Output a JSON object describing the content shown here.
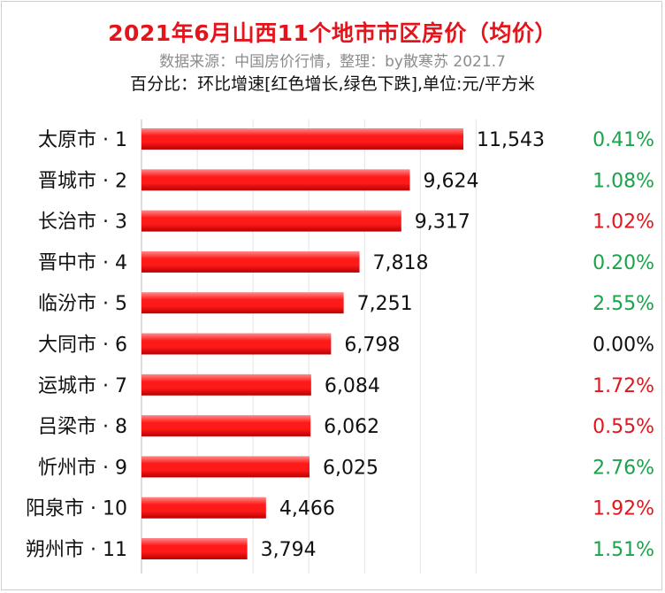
{
  "header": {
    "title": "2021年6月山西11个地市市区房价（均价）",
    "source": "数据来源：中国房价行情，整理：by散寒苏 2021.7",
    "note": "百分比：环比增速[红色增长,绿色下跌],单位:元/平方米"
  },
  "colors": {
    "bar": "#ff1a1a",
    "increase": "#e3141b",
    "decrease": "#1aa34a",
    "flat": "#111111",
    "title": "#e3141b"
  },
  "chart_data": {
    "type": "bar",
    "orientation": "horizontal",
    "title": "2021年6月山西11个地市市区房价（均价）",
    "unit": "元/平方米",
    "xlim": [
      0,
      12000
    ],
    "grid": true,
    "categories": [
      "太原市 · 1",
      "晋城市 · 2",
      "长治市 · 3",
      "晋中市 · 4",
      "临汾市 · 5",
      "大同市 · 6",
      "运城市 · 7",
      "吕梁市 · 8",
      "忻州市 · 9",
      "阳泉市 · 10",
      "朔州市 · 11"
    ],
    "values": [
      11543,
      9624,
      9317,
      7818,
      7251,
      6798,
      6084,
      6062,
      6025,
      4466,
      3794
    ],
    "value_labels": [
      "11,543",
      "9,624",
      "9,317",
      "7,818",
      "7,251",
      "6,798",
      "6,084",
      "6,062",
      "6,025",
      "4,466",
      "3,794"
    ],
    "changes": [
      "0.41%",
      "1.08%",
      "1.02%",
      "0.20%",
      "2.55%",
      "0.00%",
      "1.72%",
      "0.55%",
      "2.76%",
      "1.92%",
      "1.51%"
    ],
    "change_direction": [
      "down",
      "down",
      "up",
      "down",
      "down",
      "flat",
      "up",
      "up",
      "down",
      "up",
      "down"
    ]
  }
}
